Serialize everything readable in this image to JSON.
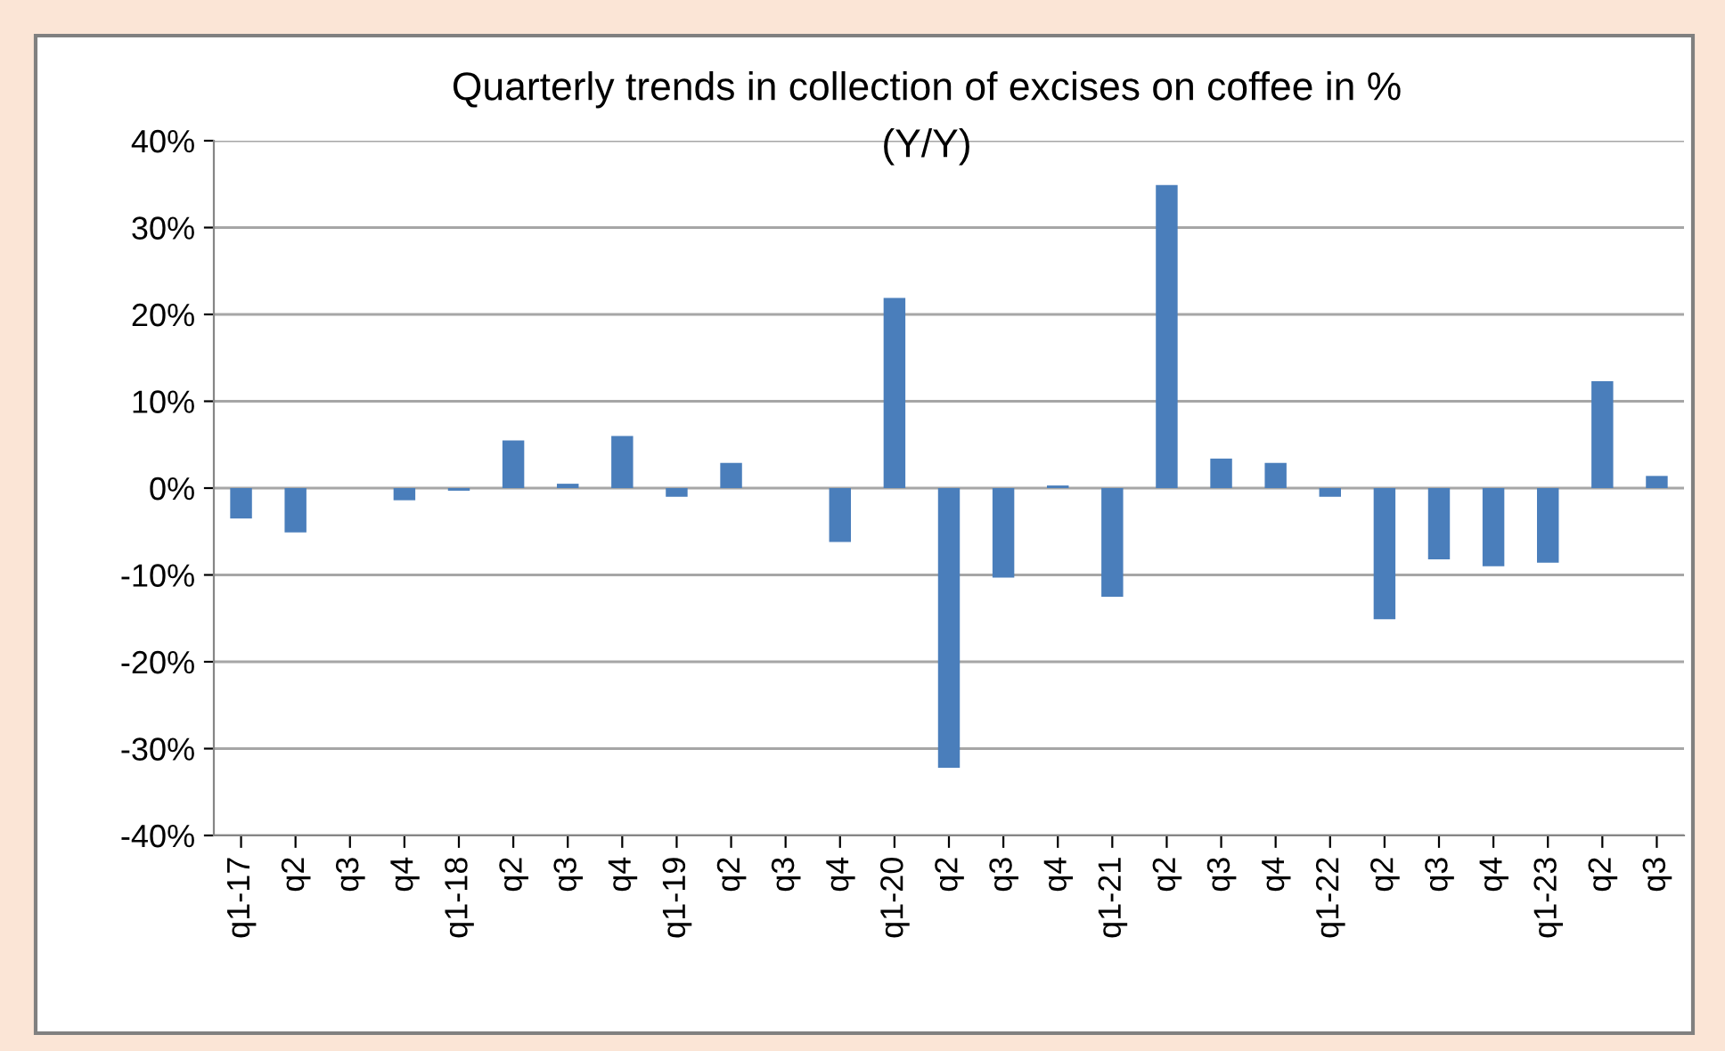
{
  "chart_data": {
    "type": "bar",
    "title": "Quarterly trends in collection of excises on coffee in %\n(Y/Y)",
    "categories": [
      "q1-17",
      "q2",
      "q3",
      "q4",
      "q1-18",
      "q2",
      "q3",
      "q4",
      "q1-19",
      "q2",
      "q3",
      "q4",
      "q1-20",
      "q2",
      "q3",
      "q4",
      "q1-21",
      "q2",
      "q3",
      "q4",
      "q1-22",
      "q2",
      "q3",
      "q4",
      "q1-23",
      "q2",
      "q3"
    ],
    "values": [
      -3.5,
      -5.1,
      0,
      -1.4,
      -0.3,
      5.5,
      0.5,
      6.0,
      -1.0,
      2.9,
      0,
      -6.2,
      21.9,
      -32.2,
      -10.3,
      0.3,
      -12.5,
      34.9,
      3.4,
      2.9,
      -1.0,
      -15.1,
      -8.2,
      -9.0,
      -8.6,
      12.3,
      1.4
    ],
    "color": "#4a7ebb",
    "ylim": [
      -40,
      40
    ],
    "yticks": [
      {
        "value": -40,
        "label": "-40%"
      },
      {
        "value": -30,
        "label": "-30%"
      },
      {
        "value": -20,
        "label": "-20%"
      },
      {
        "value": -10,
        "label": "-10%"
      },
      {
        "value": 0,
        "label": "0%"
      },
      {
        "value": 10,
        "label": "10%"
      },
      {
        "value": 20,
        "label": "20%"
      },
      {
        "value": 30,
        "label": "30%"
      },
      {
        "value": 40,
        "label": "40%"
      }
    ],
    "grid": "y",
    "legend": false
  }
}
